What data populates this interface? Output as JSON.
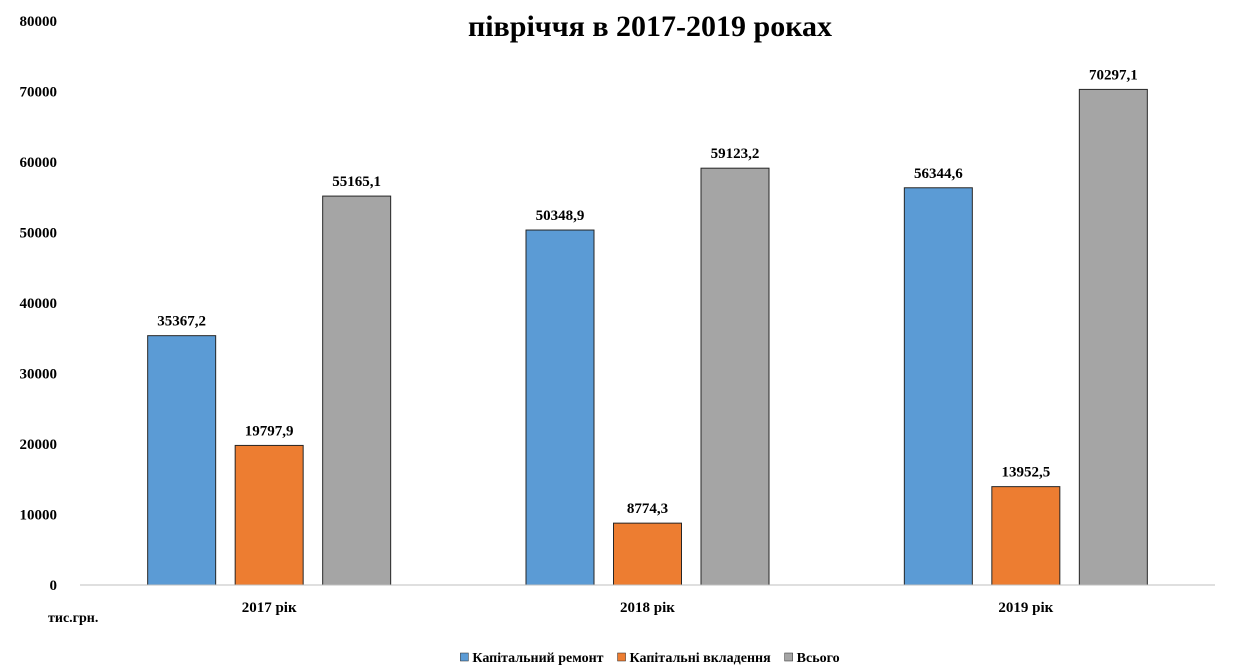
{
  "chart_data": {
    "type": "bar",
    "title": "півріччя в 2017-2019 роках",
    "ylabel": "тис.грн.",
    "ylim": [
      0,
      80000
    ],
    "yticks": [
      0,
      10000,
      20000,
      30000,
      40000,
      50000,
      60000,
      70000,
      80000
    ],
    "categories": [
      "2017 рік",
      "2018 рік",
      "2019 рік"
    ],
    "series": [
      {
        "name": "Капітальний ремонт",
        "color": "#5b9bd5",
        "values": [
          35367.2,
          50348.9,
          56344.6
        ],
        "labels": [
          "35367,2",
          "50348,9",
          "56344,6"
        ]
      },
      {
        "name": "Капітальні вкладення",
        "color": "#ed7d31",
        "values": [
          19797.9,
          8774.3,
          13952.5
        ],
        "labels": [
          "19797,9",
          "8774,3",
          "13952,5"
        ]
      },
      {
        "name": "Всього",
        "color": "#a5a5a5",
        "values": [
          55165.1,
          59123.2,
          70297.1
        ],
        "labels": [
          "55165,1",
          "59123,2",
          "70297,1"
        ]
      }
    ],
    "legend": "bottom",
    "grid": false
  }
}
